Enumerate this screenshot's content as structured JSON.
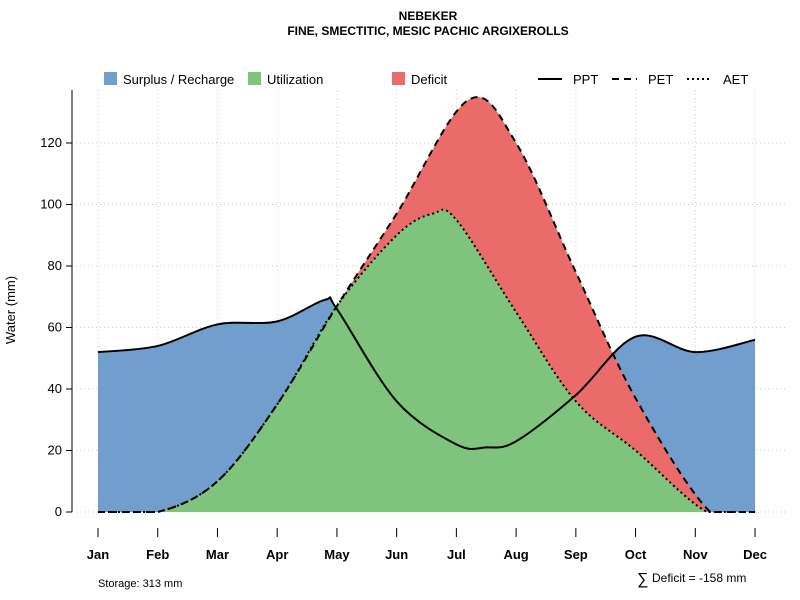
{
  "chart_data": {
    "type": "area",
    "title": "NEBEKER",
    "subtitle": "FINE, SMECTITIC, MESIC PACHIC ARGIXEROLLS",
    "ylabel": "Water (mm)",
    "xlabel": "",
    "ylim": [
      0,
      135
    ],
    "yticks": [
      0,
      20,
      40,
      60,
      80,
      100,
      120
    ],
    "categories": [
      "Jan",
      "Feb",
      "Mar",
      "Apr",
      "May",
      "Jun",
      "Jul",
      "Aug",
      "Sep",
      "Oct",
      "Nov",
      "Dec"
    ],
    "grid": true,
    "legend_placement": "top",
    "legend": {
      "fills": [
        {
          "label": "Surplus / Recharge",
          "color": "#729ECE"
        },
        {
          "label": "Utilization",
          "color": "#7EC47C"
        },
        {
          "label": "Deficit",
          "color": "#EB6B6B"
        }
      ],
      "lines": [
        {
          "label": "PPT",
          "dash": "solid"
        },
        {
          "label": "PET",
          "dash": "dashed"
        },
        {
          "label": "AET",
          "dash": "dotted"
        }
      ]
    },
    "series": [
      {
        "name": "PPT",
        "x": [
          0,
          1,
          2,
          3,
          3.8,
          4,
          5,
          6,
          6.5,
          7,
          8,
          9,
          10,
          11
        ],
        "values": [
          52,
          54,
          61,
          62,
          69,
          66,
          36,
          22,
          21,
          23,
          38,
          57,
          52,
          56
        ]
      },
      {
        "name": "PET",
        "x": [
          0,
          1,
          2,
          3,
          4,
          5,
          6.2,
          7,
          8,
          9,
          10.25,
          11
        ],
        "values": [
          0,
          0,
          10,
          35,
          67,
          97,
          134,
          120,
          78,
          37,
          0,
          0
        ]
      },
      {
        "name": "AET",
        "x": [
          0,
          1,
          2,
          3,
          4,
          5,
          5.6,
          6,
          7,
          8,
          9,
          10.2,
          11
        ],
        "values": [
          0,
          0,
          10,
          35,
          67,
          90,
          97,
          95,
          65,
          36,
          20,
          0,
          0
        ]
      }
    ],
    "annotations": {
      "storage": "Storage: 313 mm",
      "deficit_symbol": "∑",
      "deficit": "Deficit = -158 mm"
    }
  }
}
